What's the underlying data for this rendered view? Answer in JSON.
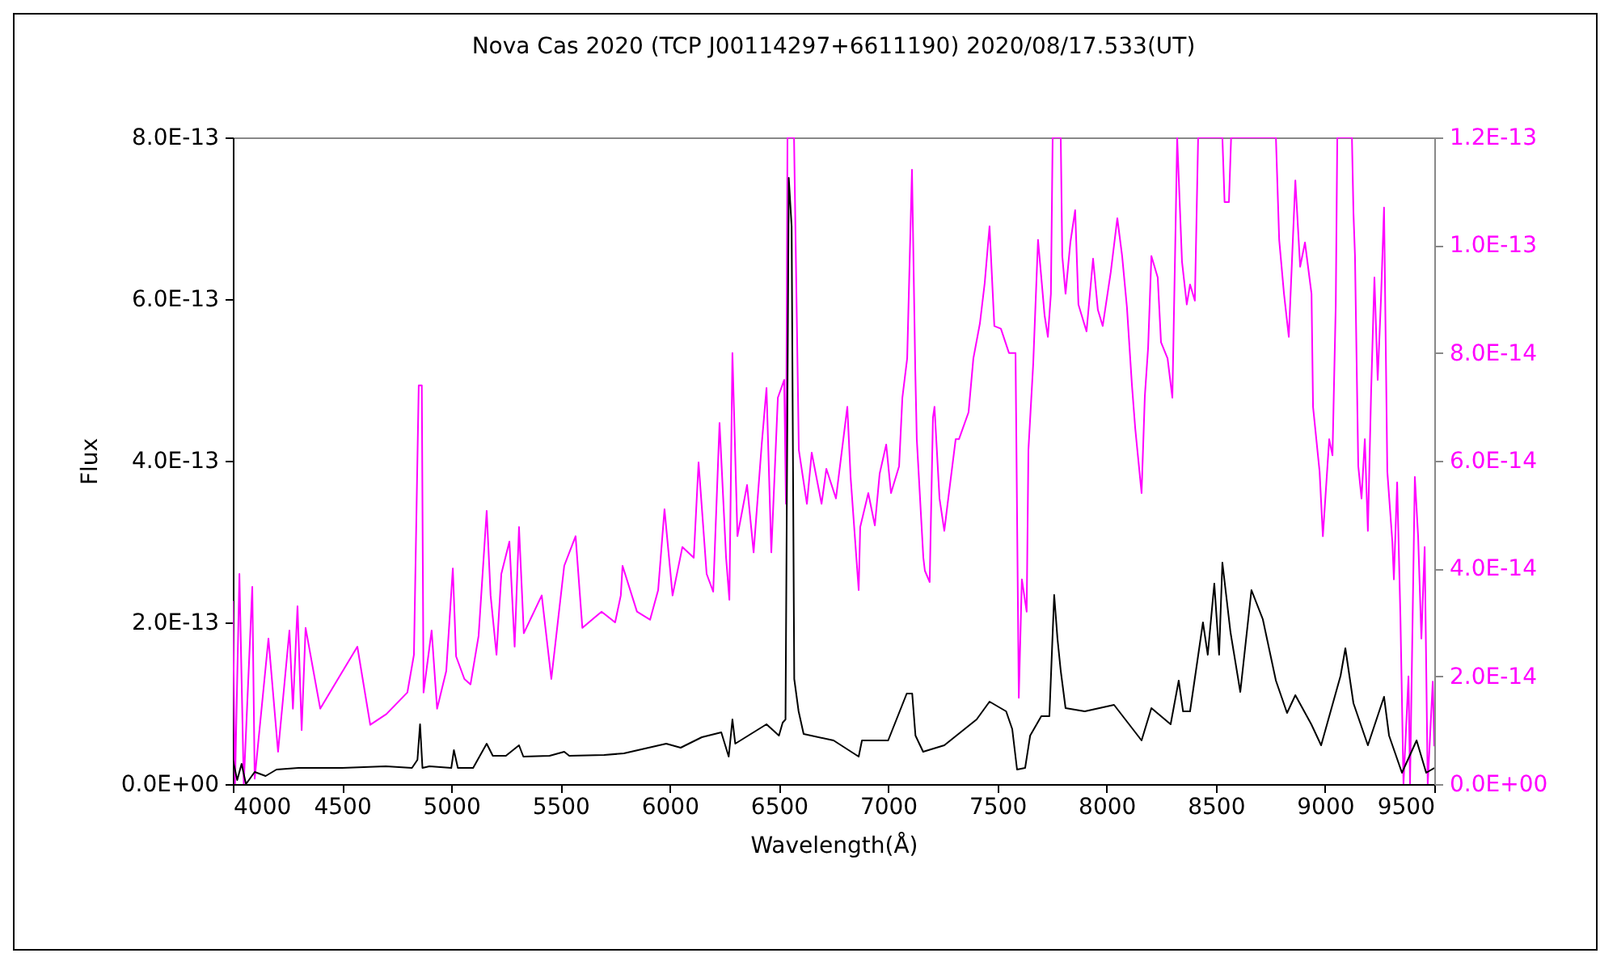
{
  "chart_data": {
    "type": "line",
    "title": "Nova Cas 2020 (TCP J00114297+6611190)    2020/08/17.533(UT)",
    "xlabel": "Wavelength(Å)",
    "ylabel": "Flux",
    "xlim": [
      4000,
      9500
    ],
    "xticks": [
      4000,
      4500,
      5000,
      5500,
      6000,
      6500,
      7000,
      7500,
      8000,
      8500,
      9000,
      9500
    ],
    "ylim": [
      0,
      8e-13
    ],
    "yticks": [
      {
        "value": 0,
        "label": "0.0E+00"
      },
      {
        "value": 2e-13,
        "label": "2.0E-13"
      },
      {
        "value": 4e-13,
        "label": "4.0E-13"
      },
      {
        "value": 6e-13,
        "label": "6.0E-13"
      },
      {
        "value": 8e-13,
        "label": "8.0E-13"
      }
    ],
    "y2lim": [
      0,
      1.2e-13
    ],
    "y2ticks": [
      {
        "value": 0,
        "label": "0.0E+00"
      },
      {
        "value": 2e-14,
        "label": "2.0E-14"
      },
      {
        "value": 4e-14,
        "label": "4.0E-14"
      },
      {
        "value": 6e-14,
        "label": "6.0E-14"
      },
      {
        "value": 8e-14,
        "label": "8.0E-14"
      },
      {
        "value": 1e-13,
        "label": "1.0E-13"
      },
      {
        "value": 1.2e-13,
        "label": "1.2E-13"
      }
    ],
    "grid": false,
    "marker": "none",
    "line_style": "solid",
    "series": [
      {
        "color": "#ff00ff",
        "axis": "y2",
        "x": [
          4000,
          4010,
          4030,
          4050,
          4089,
          4100,
          4163,
          4207,
          4259,
          4275,
          4296,
          4315,
          4333,
          4400,
          4459,
          4570,
          4629,
          4703,
          4799,
          4829,
          4851,
          4865,
          4873,
          4910,
          4935,
          4977,
          5007,
          5022,
          5060,
          5088,
          5125,
          5162,
          5180,
          5207,
          5229,
          5266,
          5290,
          5310,
          5332,
          5414,
          5458,
          5517,
          5569,
          5600,
          5688,
          5750,
          5776,
          5784,
          5850,
          5910,
          5947,
          5976,
          6013,
          6058,
          6110,
          6132,
          6169,
          6199,
          6228,
          6258,
          6273,
          6287,
          6310,
          6354,
          6384,
          6421,
          6443,
          6465,
          6495,
          6524,
          6532,
          6539,
          6569,
          6591,
          6628,
          6650,
          6695,
          6717,
          6761,
          6813,
          6828,
          6865,
          6872,
          6909,
          6939,
          6961,
          6991,
          7013,
          7050,
          7065,
          7087,
          7109,
          7124,
          7131,
          7161,
          7168,
          7190,
          7205,
          7212,
          7235,
          7257,
          7272,
          7309,
          7324,
          7368,
          7390,
          7420,
          7442,
          7464,
          7486,
          7516,
          7553,
          7583,
          7598,
          7612,
          7634,
          7642,
          7664,
          7686,
          7716,
          7731,
          7745,
          7753,
          7790,
          7797,
          7812,
          7834,
          7856,
          7871,
          7908,
          7938,
          7960,
          7982,
          8019,
          8049,
          8071,
          8093,
          8116,
          8131,
          8160,
          8175,
          8190,
          8205,
          8234,
          8249,
          8279,
          8301,
          8316,
          8323,
          8345,
          8367,
          8382,
          8404,
          8419,
          8530,
          8540,
          8560,
          8570,
          8775,
          8790,
          8812,
          8834,
          8864,
          8886,
          8908,
          8938,
          8945,
          8975,
          8990,
          9019,
          9034,
          9049,
          9056,
          9123,
          9130,
          9137,
          9152,
          9167,
          9182,
          9196,
          9211,
          9226,
          9241,
          9256,
          9270,
          9285,
          9308,
          9315,
          9330,
          9345,
          9359,
          9382,
          9389,
          9411,
          9426,
          9441,
          9456,
          9470,
          9493,
          9500
        ],
        "values": [
          3.4e-14,
          0,
          3.9e-14,
          0,
          3.66e-14,
          1e-15,
          2.7e-14,
          6e-15,
          2.85e-14,
          1.4e-14,
          3.3e-14,
          1e-14,
          2.9e-14,
          1.4e-14,
          1.8e-14,
          2.55e-14,
          1.1e-14,
          1.3e-14,
          1.7e-14,
          2.4e-14,
          7.4e-14,
          7.4e-14,
          1.7e-14,
          2.85e-14,
          1.4e-14,
          2.1e-14,
          4e-14,
          2.37e-14,
          1.95e-14,
          1.85e-14,
          2.75e-14,
          5.07e-14,
          3.5e-14,
          2.4e-14,
          3.9e-14,
          4.5e-14,
          2.55e-14,
          4.77e-14,
          2.8e-14,
          3.5e-14,
          1.95e-14,
          4.05e-14,
          4.6e-14,
          2.9e-14,
          3.2e-14,
          3e-14,
          3.5e-14,
          4.05e-14,
          3.2e-14,
          3.05e-14,
          3.6e-14,
          5.1e-14,
          3.5e-14,
          4.4e-14,
          4.2e-14,
          5.97e-14,
          3.9e-14,
          3.57e-14,
          6.7e-14,
          4.2e-14,
          3.42e-14,
          8e-14,
          4.6e-14,
          5.55e-14,
          4.3e-14,
          6.3e-14,
          7.35e-14,
          4.3e-14,
          7.17e-14,
          7.5e-14,
          5.2e-14,
          1.2e-13,
          1.2e-13,
          6.2e-14,
          5.2e-14,
          6.15e-14,
          5.2e-14,
          5.85e-14,
          5.3e-14,
          7e-14,
          5.7e-14,
          3.6e-14,
          4.77e-14,
          5.4e-14,
          4.8e-14,
          5.76e-14,
          6.3e-14,
          5.4e-14,
          5.9e-14,
          7.17e-14,
          7.9e-14,
          1.14e-13,
          7.7e-14,
          6.4e-14,
          4.2e-14,
          3.96e-14,
          3.75e-14,
          6.8e-14,
          7e-14,
          5.3e-14,
          4.7e-14,
          5.2e-14,
          6.4e-14,
          6.4e-14,
          6.9e-14,
          7.9e-14,
          8.55e-14,
          9.3e-14,
          1.035e-13,
          8.5e-14,
          8.45e-14,
          8e-14,
          8e-14,
          1.6e-14,
          3.8e-14,
          3.2e-14,
          6.2e-14,
          7.8e-14,
          1.01e-13,
          8.7e-14,
          8.3e-14,
          9.1e-14,
          1.2e-13,
          1.2e-13,
          9.8e-14,
          9.1e-14,
          1.005e-13,
          1.065e-13,
          8.9e-14,
          8.4e-14,
          9.75e-14,
          8.8e-14,
          8.5e-14,
          9.5e-14,
          1.05e-13,
          9.8e-14,
          8.85e-14,
          7.4e-14,
          6.6e-14,
          5.4e-14,
          7.2e-14,
          8.1e-14,
          9.8e-14,
          9.4e-14,
          8.2e-14,
          7.9e-14,
          7.17e-14,
          1.04e-13,
          1.2e-13,
          9.7e-14,
          8.9e-14,
          9.27e-14,
          8.97e-14,
          1.2e-13,
          1.2e-13,
          1.08e-13,
          1.08e-13,
          1.2e-13,
          1.2e-13,
          1.01e-13,
          9.1e-14,
          8.3e-14,
          1.12e-13,
          9.6e-14,
          1.005e-13,
          9.1e-14,
          7e-14,
          5.8e-14,
          4.6e-14,
          6.4e-14,
          6.1e-14,
          8.9e-14,
          1.2e-13,
          1.2e-13,
          1.06e-13,
          9.8e-14,
          5.9e-14,
          5.3e-14,
          6.4e-14,
          4.7e-14,
          7.3e-14,
          9.4e-14,
          7.5e-14,
          9e-14,
          1.07e-13,
          5.8e-14,
          4.5e-14,
          3.8e-14,
          5.6e-14,
          3.1e-14,
          0,
          2e-14,
          0,
          5.7e-14,
          4.6e-14,
          2.7e-14,
          4.4e-14,
          0,
          1.9e-14,
          7e-15
        ]
      },
      {
        "color": "#000000",
        "x": [
          4000,
          4020,
          4040,
          4060,
          4100,
          4150,
          4200,
          4300,
          4500,
          4700,
          4820,
          4845,
          4857,
          4868,
          4900,
          5000,
          5012,
          5030,
          5100,
          5162,
          5190,
          5250,
          5310,
          5330,
          5450,
          5517,
          5540,
          5700,
          5790,
          5984,
          6050,
          6147,
          6236,
          6270,
          6287,
          6300,
          6443,
          6500,
          6517,
          6530,
          6545,
          6558,
          6570,
          6590,
          6613,
          6750,
          6865,
          6880,
          7000,
          7085,
          7110,
          7125,
          7160,
          7257,
          7405,
          7464,
          7540,
          7568,
          7590,
          7627,
          7650,
          7701,
          7738,
          7760,
          7775,
          7790,
          7812,
          7900,
          8034,
          8160,
          8205,
          8293,
          8330,
          8350,
          8382,
          8441,
          8463,
          8493,
          8515,
          8530,
          8567,
          8612,
          8663,
          8715,
          8775,
          8826,
          8864,
          8937,
          8982,
          9071,
          9093,
          9130,
          9196,
          9270,
          9293,
          9352,
          9419,
          9463,
          9500
        ],
        "values": [
          3e-14,
          5e-15,
          2.5e-14,
          0,
          1.5e-14,
          1e-14,
          1.8e-14,
          2e-14,
          2e-14,
          2.2e-14,
          2e-14,
          3e-14,
          7.4e-14,
          2e-14,
          2.2e-14,
          2e-14,
          4.2e-14,
          2e-14,
          2e-14,
          5e-14,
          3.5e-14,
          3.5e-14,
          4.8e-14,
          3.4e-14,
          3.5e-14,
          4e-14,
          3.5e-14,
          3.6e-14,
          3.8e-14,
          5e-14,
          4.5e-14,
          5.8e-14,
          6.4e-14,
          3.4e-14,
          8e-14,
          5e-14,
          7.4e-14,
          6e-14,
          7.6e-14,
          8e-14,
          7.5e-13,
          6.9e-13,
          1.3e-13,
          9e-14,
          6.2e-14,
          5.4e-14,
          3.4e-14,
          5.4e-14,
          5.4e-14,
          1.12e-13,
          1.12e-13,
          6e-14,
          4e-14,
          4.8e-14,
          8e-14,
          1.02e-13,
          9e-14,
          6.8e-14,
          1.8e-14,
          2e-14,
          6e-14,
          8.4e-14,
          8.4e-14,
          2.34e-13,
          1.8e-13,
          1.4e-13,
          9.4e-14,
          9e-14,
          9.8e-14,
          5.4e-14,
          9.4e-14,
          7.4e-14,
          1.28e-13,
          9e-14,
          9e-14,
          2e-13,
          1.6e-13,
          2.48e-13,
          1.6e-13,
          2.74e-13,
          1.88e-13,
          1.14e-13,
          2.4e-13,
          2.04e-13,
          1.28e-13,
          8.8e-14,
          1.1e-13,
          7.4e-14,
          4.8e-14,
          1.34e-13,
          1.68e-13,
          1e-13,
          4.8e-14,
          1.08e-13,
          6e-14,
          1.4e-14,
          5.4e-14,
          1.4e-14,
          2e-14
        ]
      }
    ]
  }
}
